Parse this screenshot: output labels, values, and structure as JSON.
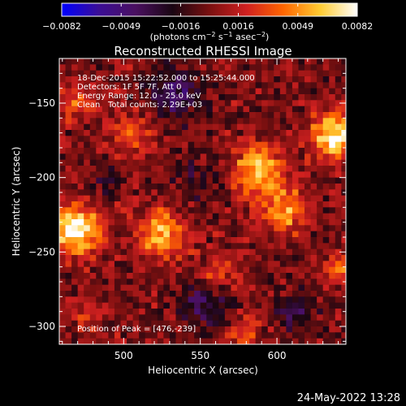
{
  "chart_data": {
    "type": "heatmap",
    "title": "Reconstructed RHESSI Image",
    "xlabel": "Heliocentric X (arcsec)",
    "ylabel": "Heliocentric Y (arcsec)",
    "xlim": [
      458,
      645
    ],
    "ylim": [
      -312,
      -120
    ],
    "x_ticks": [
      500,
      550,
      600
    ],
    "y_ticks": [
      -150,
      -200,
      -250,
      -300
    ],
    "x_tick_labels": [
      "500",
      "550",
      "600"
    ],
    "y_tick_labels": [
      "−150",
      "−200",
      "−250",
      "−300"
    ],
    "pixel_size_arcsec": 4,
    "colorbar": {
      "min": -0.0082,
      "max": 0.0082,
      "ticks": [
        -0.0082,
        -0.0049,
        -0.0016,
        0.0016,
        0.0049,
        0.0082
      ],
      "tick_labels": [
        "−0.0082",
        "−0.0049",
        "−0.0016",
        "0.0016",
        "0.0049",
        "0.0082"
      ],
      "units_text": "(photons cm",
      "units_exp1": "−2",
      "units_mid": " s",
      "units_exp2": "−1",
      "units_mid2": " asec",
      "units_exp3": "−2",
      "units_end": ")",
      "colors": [
        "#0000ff",
        "#3b0e96",
        "#4a1060",
        "#1a0612",
        "#7a1010",
        "#d02020",
        "#ff6600",
        "#ffcc33",
        "#ffffff"
      ]
    },
    "sources": [
      {
        "x": 468,
        "y": -235,
        "amplitude": 0.0085,
        "sigma": 11
      },
      {
        "x": 525,
        "y": -238,
        "amplitude": 0.006,
        "sigma": 11
      },
      {
        "x": 588,
        "y": -195,
        "amplitude": 0.006,
        "sigma": 12
      },
      {
        "x": 605,
        "y": -222,
        "amplitude": 0.005,
        "sigma": 11
      },
      {
        "x": 637,
        "y": -172,
        "amplitude": 0.008,
        "sigma": 10
      },
      {
        "x": 507,
        "y": -170,
        "amplitude": 0.0032,
        "sigma": 10
      },
      {
        "x": 470,
        "y": -150,
        "amplitude": 0.003,
        "sigma": 9
      },
      {
        "x": 641,
        "y": -260,
        "amplitude": 0.004,
        "sigma": 7
      },
      {
        "x": 562,
        "y": -262,
        "amplitude": 0.0028,
        "sigma": 9
      },
      {
        "x": 578,
        "y": -305,
        "amplitude": 0.0034,
        "sigma": 7
      },
      {
        "x": 476,
        "y": -292,
        "amplitude": 0.0022,
        "sigma": 8
      }
    ],
    "negative_regions": [
      {
        "x": 532,
        "y": -145,
        "amplitude": -0.004,
        "sigma": 12
      },
      {
        "x": 552,
        "y": -285,
        "amplitude": -0.004,
        "sigma": 10
      },
      {
        "x": 612,
        "y": -290,
        "amplitude": -0.0032,
        "sigma": 9
      },
      {
        "x": 548,
        "y": -205,
        "amplitude": -0.0022,
        "sigma": 10
      },
      {
        "x": 488,
        "y": -200,
        "amplitude": -0.0018,
        "sigma": 8
      }
    ],
    "noise_level": 0.0016,
    "annotations": {
      "time_range": "18-Dec-2015 15:22:52.000 to 15:25:44.000",
      "detectors": "Detectors: 1F 5F 7F, Att 0",
      "energy_range": "Energy Range: 12.0 - 25.0 keV",
      "algorithm": "Clean",
      "total_counts": "Total counts: 2.29E+03",
      "peak_position": "Position of Peak = [476,-239]"
    }
  },
  "footer": {
    "timestamp": "24-May-2022 13:28"
  }
}
